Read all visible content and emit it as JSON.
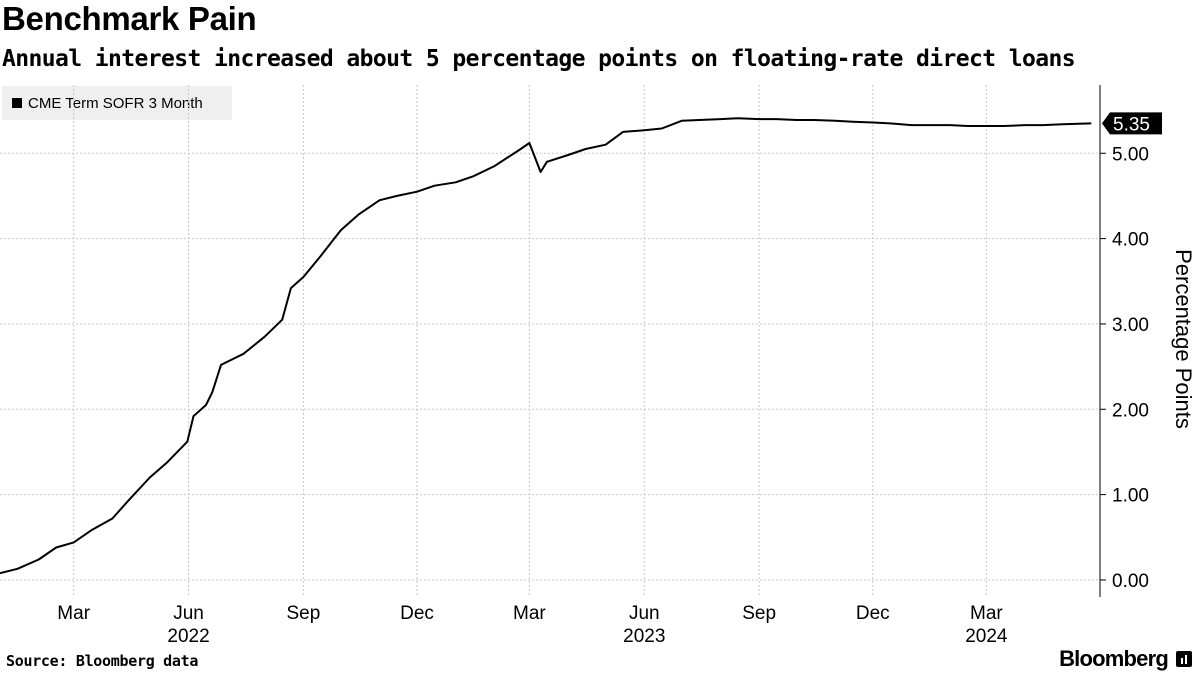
{
  "header": {
    "title": "Benchmark Pain",
    "subtitle": "Annual interest increased about 5 percentage points on floating-rate direct loans"
  },
  "footer": {
    "source": "Source: Bloomberg data",
    "brand": "Bloomberg"
  },
  "colors": {
    "line": "#000000",
    "grid": "#c8c8c8",
    "legend_bg": "#efefef"
  },
  "chart_data": {
    "type": "line",
    "title": "Benchmark Pain",
    "subtitle": "Annual interest increased about 5 percentage points on floating-rate direct loans",
    "ylabel": "Percentage Points",
    "xlabel": "",
    "ylim": [
      -0.2,
      5.8
    ],
    "yticks": [
      0,
      1,
      2,
      3,
      4,
      5
    ],
    "ytick_labels": [
      "0.00",
      "1.00",
      "2.00",
      "3.00",
      "4.00",
      "5.00"
    ],
    "x_month_ticks": [
      {
        "date": "2022-03-01",
        "label": "Mar"
      },
      {
        "date": "2022-06-01",
        "label": "Jun"
      },
      {
        "date": "2022-09-01",
        "label": "Sep"
      },
      {
        "date": "2022-12-01",
        "label": "Dec"
      },
      {
        "date": "2023-03-01",
        "label": "Mar"
      },
      {
        "date": "2023-06-01",
        "label": "Jun"
      },
      {
        "date": "2023-09-01",
        "label": "Sep"
      },
      {
        "date": "2023-12-01",
        "label": "Dec"
      },
      {
        "date": "2024-03-01",
        "label": "Mar"
      }
    ],
    "x_year_labels": [
      {
        "date": "2022-06-01",
        "label": "2022"
      },
      {
        "date": "2023-06-01",
        "label": "2023"
      },
      {
        "date": "2024-03-01",
        "label": "2024"
      }
    ],
    "x_range": [
      "2022-01-01",
      "2024-05-31"
    ],
    "legend": [
      "CME Term SOFR 3 Month"
    ],
    "grid": true,
    "last_value_label": "5.35",
    "series": [
      {
        "name": "CME Term SOFR 3 Month",
        "points": [
          [
            "2022-01-01",
            0.08
          ],
          [
            "2022-01-15",
            0.13
          ],
          [
            "2022-02-01",
            0.24
          ],
          [
            "2022-02-15",
            0.38
          ],
          [
            "2022-03-01",
            0.44
          ],
          [
            "2022-03-15",
            0.58
          ],
          [
            "2022-04-01",
            0.72
          ],
          [
            "2022-04-15",
            0.95
          ],
          [
            "2022-05-01",
            1.2
          ],
          [
            "2022-05-15",
            1.38
          ],
          [
            "2022-05-31",
            1.62
          ],
          [
            "2022-06-05",
            1.92
          ],
          [
            "2022-06-15",
            2.05
          ],
          [
            "2022-06-20",
            2.2
          ],
          [
            "2022-06-27",
            2.52
          ],
          [
            "2022-07-15",
            2.65
          ],
          [
            "2022-08-01",
            2.85
          ],
          [
            "2022-08-15",
            3.05
          ],
          [
            "2022-08-22",
            3.42
          ],
          [
            "2022-09-01",
            3.55
          ],
          [
            "2022-09-15",
            3.8
          ],
          [
            "2022-10-01",
            4.1
          ],
          [
            "2022-10-15",
            4.28
          ],
          [
            "2022-11-01",
            4.45
          ],
          [
            "2022-11-15",
            4.5
          ],
          [
            "2022-12-01",
            4.55
          ],
          [
            "2022-12-15",
            4.62
          ],
          [
            "2023-01-01",
            4.66
          ],
          [
            "2023-01-15",
            4.73
          ],
          [
            "2023-02-01",
            4.85
          ],
          [
            "2023-02-22",
            5.05
          ],
          [
            "2023-03-01",
            5.12
          ],
          [
            "2023-03-10",
            4.78
          ],
          [
            "2023-03-15",
            4.9
          ],
          [
            "2023-04-01",
            4.98
          ],
          [
            "2023-04-15",
            5.05
          ],
          [
            "2023-05-01",
            5.1
          ],
          [
            "2023-05-15",
            5.25
          ],
          [
            "2023-06-01",
            5.27
          ],
          [
            "2023-06-15",
            5.29
          ],
          [
            "2023-07-01",
            5.38
          ],
          [
            "2023-07-15",
            5.39
          ],
          [
            "2023-08-01",
            5.4
          ],
          [
            "2023-08-15",
            5.41
          ],
          [
            "2023-09-01",
            5.4
          ],
          [
            "2023-09-15",
            5.4
          ],
          [
            "2023-10-01",
            5.39
          ],
          [
            "2023-10-15",
            5.39
          ],
          [
            "2023-11-01",
            5.38
          ],
          [
            "2023-11-15",
            5.37
          ],
          [
            "2023-12-01",
            5.36
          ],
          [
            "2023-12-15",
            5.35
          ],
          [
            "2024-01-01",
            5.33
          ],
          [
            "2024-01-15",
            5.33
          ],
          [
            "2024-02-01",
            5.33
          ],
          [
            "2024-02-15",
            5.32
          ],
          [
            "2024-03-01",
            5.32
          ],
          [
            "2024-03-15",
            5.32
          ],
          [
            "2024-04-01",
            5.33
          ],
          [
            "2024-04-15",
            5.33
          ],
          [
            "2024-05-01",
            5.34
          ],
          [
            "2024-05-24",
            5.35
          ]
        ]
      }
    ]
  }
}
